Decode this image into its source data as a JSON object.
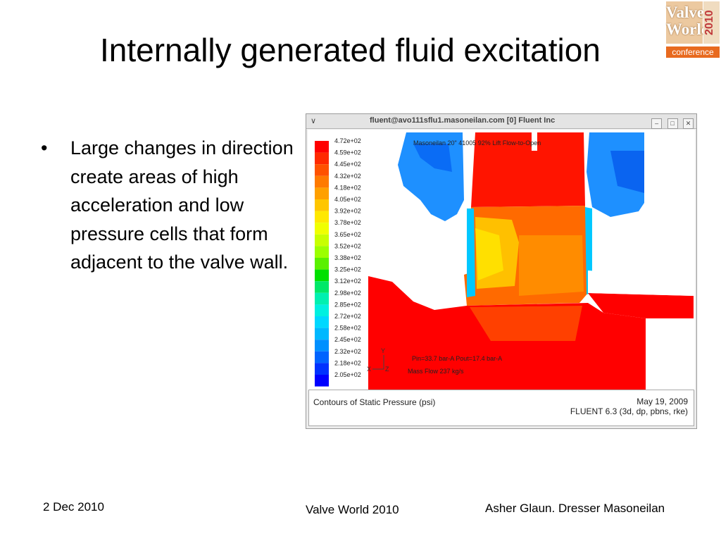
{
  "slide": {
    "title": "Internally generated fluid excitation",
    "bullet": "Large changes in direction create areas of high acceleration and low pressure cells that form adjacent to the valve wall."
  },
  "logo": {
    "line1": "Valve",
    "line2": "World",
    "year": "2010",
    "subtitle": "conference"
  },
  "window": {
    "title": "fluent@avo111sflu1.masoneilan.com [0] Fluent Inc",
    "menu_icon": "chevron-down-icon",
    "buttons": [
      "minimize-icon",
      "maximize-icon",
      "close-icon"
    ]
  },
  "plot": {
    "annotation_top": "Masoneilan 20\" 41005 92% Lift Flow-to-Open",
    "annotation_pressures": "Pin=33.7 bar-A  Pout=17.4 bar-A",
    "annotation_flow": "Mass Flow 237 kg/s",
    "axis_y": "Y",
    "axis_x": "X",
    "axis_z": "Z",
    "legend": [
      {
        "label": "4.72e+02",
        "color": "#ff0000"
      },
      {
        "label": "4.59e+02",
        "color": "#ff2a00"
      },
      {
        "label": "4.45e+02",
        "color": "#ff5200"
      },
      {
        "label": "4.32e+02",
        "color": "#ff7a00"
      },
      {
        "label": "4.18e+02",
        "color": "#ffa000"
      },
      {
        "label": "4.05e+02",
        "color": "#ffc600"
      },
      {
        "label": "3.92e+02",
        "color": "#ffe800"
      },
      {
        "label": "3.78e+02",
        "color": "#f0ff00"
      },
      {
        "label": "3.65e+02",
        "color": "#c8ff00"
      },
      {
        "label": "3.52e+02",
        "color": "#9cff00"
      },
      {
        "label": "3.38e+02",
        "color": "#5af000"
      },
      {
        "label": "3.25e+02",
        "color": "#00e000"
      },
      {
        "label": "3.12e+02",
        "color": "#00e868"
      },
      {
        "label": "2.98e+02",
        "color": "#00f0b0"
      },
      {
        "label": "2.85e+02",
        "color": "#00f0e0"
      },
      {
        "label": "2.72e+02",
        "color": "#00d8ff"
      },
      {
        "label": "2.58e+02",
        "color": "#00b8ff"
      },
      {
        "label": "2.45e+02",
        "color": "#0090ff"
      },
      {
        "label": "2.32e+02",
        "color": "#0064ff"
      },
      {
        "label": "2.18e+02",
        "color": "#0032ff"
      },
      {
        "label": "2.05e+02",
        "color": "#0000ff"
      }
    ]
  },
  "status": {
    "left": "Contours of Static Pressure (psi)",
    "date": "May 19, 2009",
    "version": "FLUENT 6.3 (3d, dp, pbns, rke)"
  },
  "footer": {
    "date": "2 Dec 2010",
    "center": "Valve World 2010",
    "right": "Asher Glaun. Dresser Masoneilan"
  }
}
